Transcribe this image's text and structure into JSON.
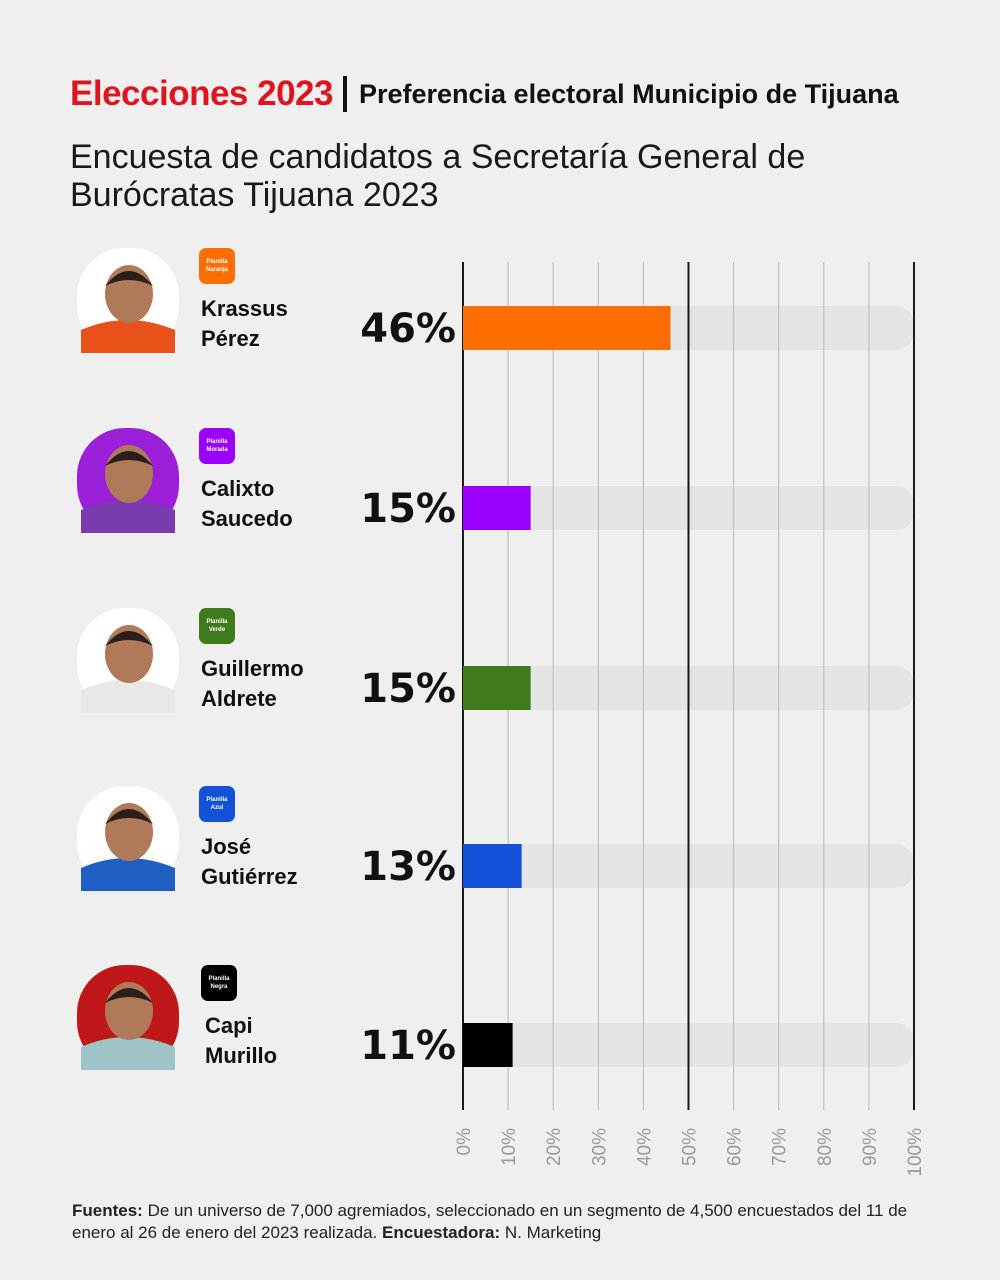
{
  "header": {
    "brand": "Elecciones 2023",
    "subtitle": "Preferencia electoral Municipio de Tijuana"
  },
  "title": "Encuesta de candidatos a Secretaría General de Burócratas Tijuana 2023",
  "footer": {
    "sources_label": "Fuentes:",
    "sources_text": "De un universo de 7,000 agremiados, seleccionado en un segmento de 4,500 encuestados del 11 de enero al 26 de enero del 2023 realizada.",
    "pollster_label": "Encuestadora:",
    "pollster_text": "N. Marketing"
  },
  "chart_data": {
    "type": "bar",
    "orientation": "horizontal",
    "categories": [
      "Krassus Pérez",
      "Calixto Saucedo",
      "Guillermo Aldrete",
      "José Gutiérrez",
      "Capi Murillo"
    ],
    "name_lines": [
      [
        "Krassus",
        "Pérez"
      ],
      [
        "Calixto",
        "Saucedo"
      ],
      [
        "Guillermo",
        "Aldrete"
      ],
      [
        "José",
        "Gutiérrez"
      ],
      [
        "Capi",
        "Murillo"
      ]
    ],
    "values": [
      46,
      15,
      15,
      13,
      11
    ],
    "value_labels": [
      "46%",
      "15%",
      "15%",
      "13%",
      "11%"
    ],
    "badges": [
      [
        "Planilla",
        "Naranja"
      ],
      [
        "Planilla",
        "Morada"
      ],
      [
        "Planilla",
        "Verde"
      ],
      [
        "Planilla",
        "Azul"
      ],
      [
        "Planilla",
        "Negra"
      ]
    ],
    "colors": [
      "#ff6d00",
      "#9b00ff",
      "#3f7a1c",
      "#1351d8",
      "#000000"
    ],
    "shirt_colors": [
      "#e8521a",
      "#7a3ab0",
      "#e8e8e8",
      "#1f5fc4",
      "#9ec4c8"
    ],
    "photo_bg_colors": [
      "#ffffff",
      "#9b1fd8",
      "#ffffff",
      "#ffffff",
      "#c01818"
    ],
    "xlim": [
      0,
      100
    ],
    "x_ticks": [
      "0%",
      "10%",
      "20%",
      "30%",
      "40%",
      "50%",
      "60%",
      "70%",
      "80%",
      "90%",
      "100%"
    ],
    "track_color": "#e4e4e4",
    "grid": true
  }
}
